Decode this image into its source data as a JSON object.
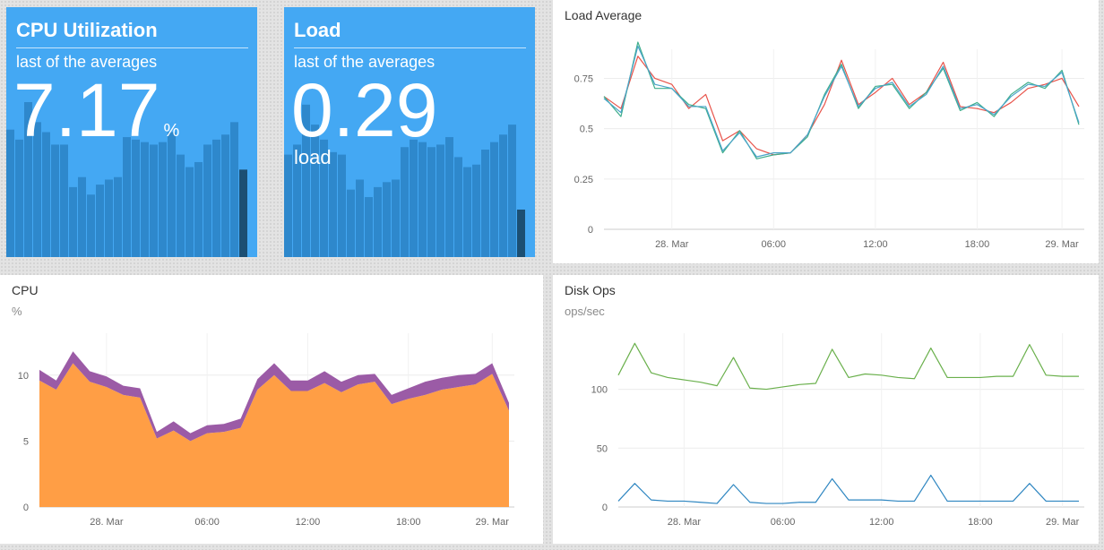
{
  "cpu_stat": {
    "title": "CPU Utilization",
    "subtitle": "last of the averages",
    "value": "7.17",
    "unit": "%",
    "bar_color": "#2e88cc",
    "last_bar_color": "#1c4f73",
    "background": "#44a8f3",
    "bars": [
      0.51,
      0.47,
      0.62,
      0.54,
      0.5,
      0.45,
      0.45,
      0.28,
      0.32,
      0.25,
      0.29,
      0.31,
      0.32,
      0.48,
      0.47,
      0.46,
      0.45,
      0.46,
      0.5,
      0.41,
      0.36,
      0.38,
      0.45,
      0.47,
      0.49,
      0.54,
      0.35
    ]
  },
  "load_stat": {
    "title": "Load",
    "subtitle": "last of the averages",
    "value": "0.29",
    "unit": "load",
    "bar_color": "#2e88cc",
    "last_bar_color": "#1c4f73",
    "background": "#44a8f3",
    "bars": [
      0.41,
      0.45,
      0.61,
      0.53,
      0.47,
      0.42,
      0.41,
      0.27,
      0.31,
      0.24,
      0.28,
      0.3,
      0.31,
      0.44,
      0.47,
      0.46,
      0.44,
      0.45,
      0.48,
      0.4,
      0.36,
      0.37,
      0.43,
      0.46,
      0.49,
      0.53,
      0.19
    ]
  },
  "chart_data": [
    {
      "id": "load-average",
      "type": "line",
      "title": "Load Average",
      "unit_label": "",
      "xlabel": "",
      "ylabel": "",
      "x_tick_labels": [
        "28. Mar",
        "06:00",
        "12:00",
        "18:00",
        "29. Mar"
      ],
      "x_tick_positions": [
        4,
        10,
        16,
        22,
        27
      ],
      "y_tick_labels": [
        "0",
        "0.25",
        "0.5",
        "0.75"
      ],
      "y_ticks": [
        0,
        0.25,
        0.5,
        0.75
      ],
      "ylim": [
        0,
        0.85
      ],
      "grid": true,
      "x": [
        0,
        1,
        2,
        3,
        4,
        5,
        6,
        7,
        8,
        9,
        10,
        11,
        12,
        13,
        14,
        15,
        16,
        17,
        18,
        19,
        20,
        21,
        22,
        23,
        24,
        25,
        26,
        27,
        28
      ],
      "series": [
        {
          "color": "#e8534a",
          "values": [
            0.66,
            0.6,
            0.86,
            0.75,
            0.72,
            0.6,
            0.67,
            0.44,
            0.49,
            0.4,
            0.37,
            0.38,
            0.47,
            0.62,
            0.84,
            0.62,
            0.68,
            0.75,
            0.62,
            0.68,
            0.83,
            0.61,
            0.6,
            0.58,
            0.63,
            0.7,
            0.72,
            0.75,
            0.61
          ]
        },
        {
          "color": "#3fae8c",
          "values": [
            0.66,
            0.56,
            0.93,
            0.7,
            0.7,
            0.62,
            0.6,
            0.38,
            0.49,
            0.35,
            0.37,
            0.38,
            0.46,
            0.67,
            0.82,
            0.6,
            0.71,
            0.72,
            0.6,
            0.68,
            0.8,
            0.59,
            0.63,
            0.56,
            0.67,
            0.73,
            0.7,
            0.79,
            0.52
          ]
        },
        {
          "color": "#4aa3c9",
          "values": [
            0.65,
            0.58,
            0.91,
            0.72,
            0.7,
            0.61,
            0.61,
            0.39,
            0.48,
            0.36,
            0.38,
            0.38,
            0.47,
            0.66,
            0.81,
            0.61,
            0.7,
            0.73,
            0.61,
            0.67,
            0.81,
            0.6,
            0.62,
            0.57,
            0.66,
            0.72,
            0.71,
            0.78,
            0.53
          ]
        }
      ]
    },
    {
      "id": "cpu",
      "type": "area",
      "title": "CPU",
      "unit_label": "%",
      "xlabel": "",
      "ylabel": "",
      "x_tick_labels": [
        "28. Mar",
        "06:00",
        "12:00",
        "18:00",
        "29. Mar"
      ],
      "x_tick_positions": [
        4,
        10,
        16,
        22,
        27
      ],
      "y_tick_labels": [
        "0",
        "5",
        "10"
      ],
      "y_ticks": [
        0,
        5,
        10
      ],
      "ylim": [
        0,
        12.5
      ],
      "grid": true,
      "stacked": true,
      "x": [
        0,
        1,
        2,
        3,
        4,
        5,
        6,
        7,
        8,
        9,
        10,
        11,
        12,
        13,
        14,
        15,
        16,
        17,
        18,
        19,
        20,
        21,
        22,
        23,
        24,
        25,
        26,
        27,
        28
      ],
      "series": [
        {
          "color": "#ff9e45",
          "values": [
            9.6,
            8.9,
            10.9,
            9.5,
            9.1,
            8.5,
            8.3,
            5.2,
            5.8,
            5.0,
            5.6,
            5.7,
            6.0,
            8.9,
            10.0,
            8.8,
            8.8,
            9.4,
            8.7,
            9.3,
            9.5,
            7.8,
            8.2,
            8.5,
            8.9,
            9.1,
            9.3,
            10.1,
            7.3
          ]
        },
        {
          "color": "#9b5ba6",
          "values": [
            0.8,
            0.7,
            0.9,
            0.8,
            0.8,
            0.7,
            0.7,
            0.5,
            0.7,
            0.6,
            0.6,
            0.6,
            0.7,
            0.8,
            0.9,
            0.8,
            0.8,
            0.9,
            0.8,
            0.7,
            0.6,
            0.7,
            0.8,
            1.0,
            0.9,
            0.9,
            0.8,
            0.8,
            0.6
          ]
        }
      ]
    },
    {
      "id": "disk-ops",
      "type": "line",
      "title": "Disk Ops",
      "unit_label": "ops/sec",
      "xlabel": "",
      "ylabel": "",
      "x_tick_labels": [
        "28. Mar",
        "06:00",
        "12:00",
        "18:00",
        "29. Mar"
      ],
      "x_tick_positions": [
        4,
        10,
        16,
        22,
        27
      ],
      "y_tick_labels": [
        "0",
        "50",
        "100"
      ],
      "y_ticks": [
        0,
        50,
        100
      ],
      "ylim": [
        0,
        140
      ],
      "grid": true,
      "x": [
        0,
        1,
        2,
        3,
        4,
        5,
        6,
        7,
        8,
        9,
        10,
        11,
        12,
        13,
        14,
        15,
        16,
        17,
        18,
        19,
        20,
        21,
        22,
        23,
        24,
        25,
        26,
        27,
        28
      ],
      "series": [
        {
          "color": "#6ab04c",
          "values": [
            112,
            139,
            114,
            110,
            108,
            106,
            103,
            127,
            101,
            100,
            102,
            104,
            105,
            134,
            110,
            113,
            112,
            110,
            109,
            135,
            110,
            110,
            110,
            111,
            111,
            138,
            112,
            111,
            111
          ]
        },
        {
          "color": "#2e86c1",
          "values": [
            5,
            20,
            6,
            5,
            5,
            4,
            3,
            19,
            4,
            3,
            3,
            4,
            4,
            24,
            6,
            6,
            6,
            5,
            5,
            27,
            5,
            5,
            5,
            5,
            5,
            20,
            5,
            5,
            5
          ]
        }
      ]
    }
  ]
}
